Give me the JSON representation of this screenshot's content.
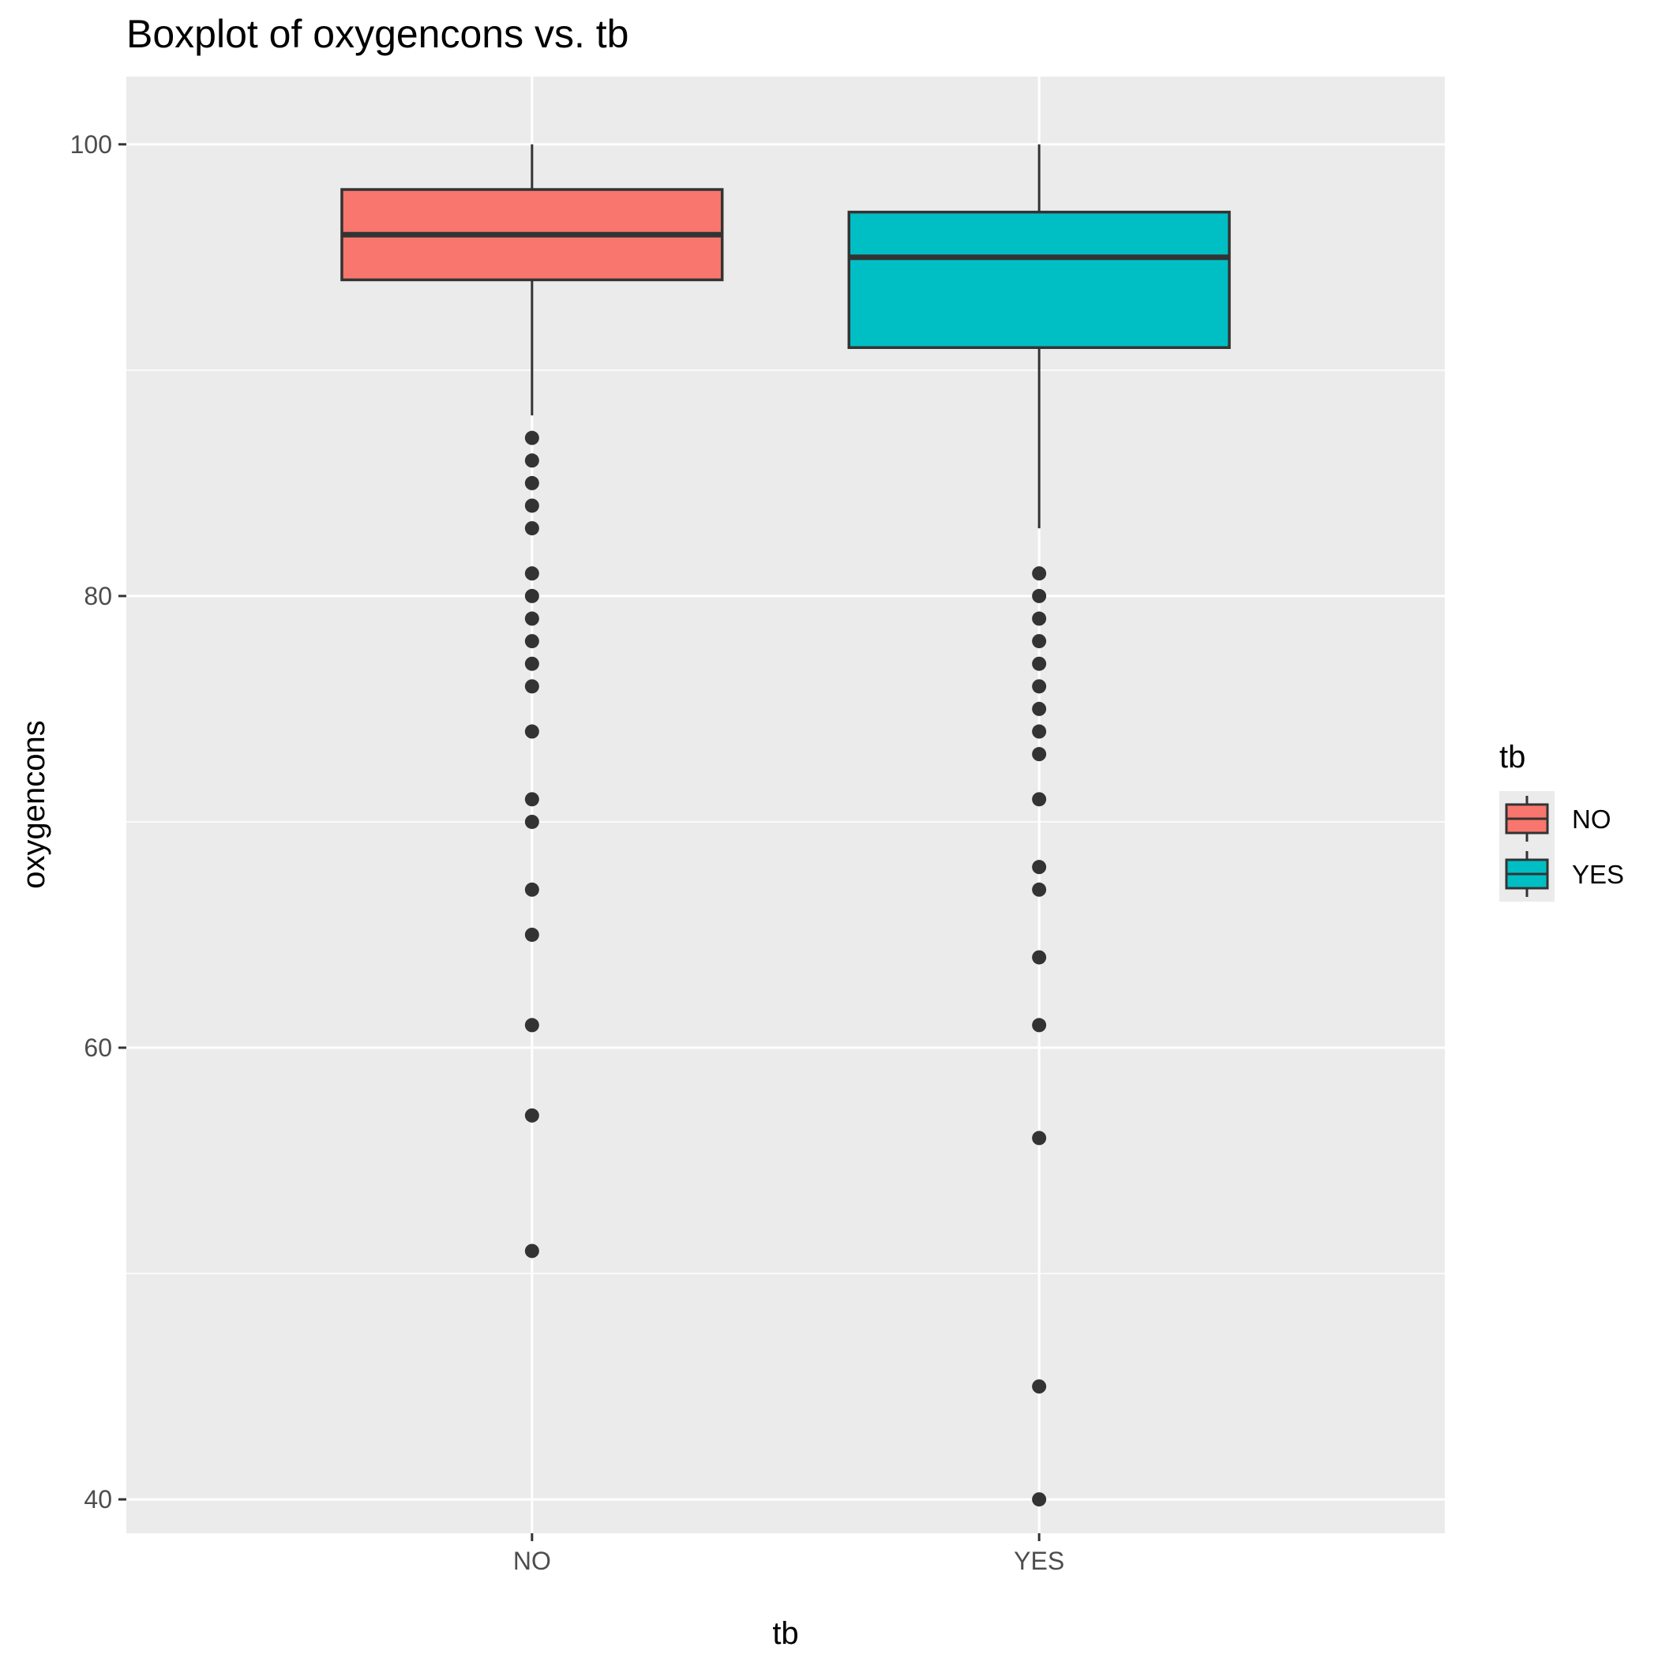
{
  "chart_data": {
    "type": "boxplot",
    "title": "Boxplot of oxygencons vs. tb",
    "xlabel": "tb",
    "ylabel": "oxygencons",
    "categories": [
      "NO",
      "YES"
    ],
    "yticks": [
      40,
      60,
      80,
      100
    ],
    "ylim": [
      38.5,
      103
    ],
    "grid": true,
    "legend": {
      "title": "tb",
      "position": "right",
      "entries": [
        "NO",
        "YES"
      ]
    },
    "colors": {
      "NO": "#F8766D",
      "YES": "#00BFC4",
      "panel": "#EBEBEB",
      "grid": "#FFFFFF",
      "outline": "#333333"
    },
    "series": [
      {
        "name": "NO",
        "box": {
          "lower_whisker": 88,
          "q1": 94,
          "median": 96,
          "q3": 98,
          "upper_whisker": 100
        },
        "outliers": [
          87,
          86,
          85,
          84,
          83,
          81,
          80,
          79,
          78,
          77,
          76,
          74,
          71,
          70,
          67,
          65,
          61,
          57,
          51
        ]
      },
      {
        "name": "YES",
        "box": {
          "lower_whisker": 83,
          "q1": 91,
          "median": 95,
          "q3": 97,
          "upper_whisker": 100
        },
        "outliers": [
          81,
          80,
          79,
          78,
          77,
          76,
          75,
          74,
          73,
          71,
          68,
          67,
          64,
          61,
          56,
          45,
          40
        ]
      }
    ]
  }
}
